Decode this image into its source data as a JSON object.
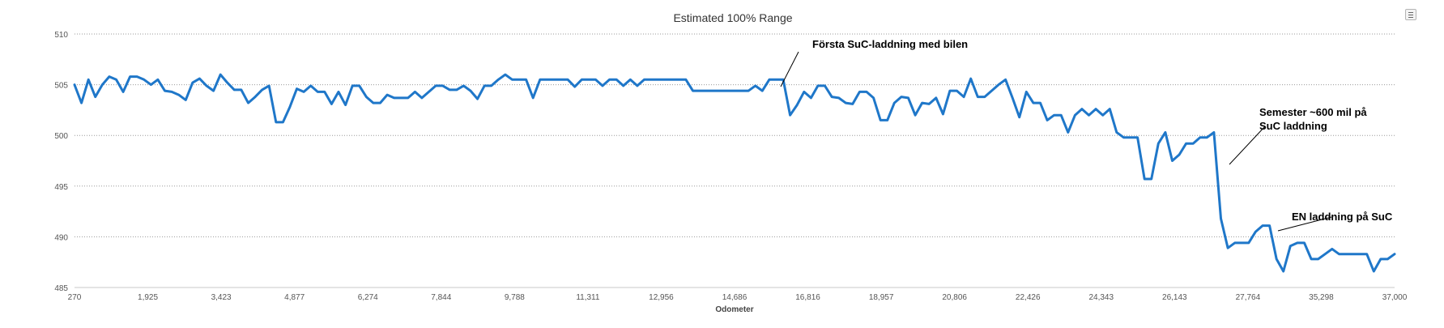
{
  "chart_data": {
    "type": "line",
    "title": "Estimated 100% Range",
    "xlabel": "Odometer",
    "ylabel": "",
    "ylim": [
      485,
      510
    ],
    "yticks": [
      510,
      505,
      500,
      495,
      490,
      485
    ],
    "grid": true,
    "grid_style": "dotted",
    "x_tick_labels": [
      "270",
      "1,925",
      "3,423",
      "4,877",
      "6,274",
      "7,844",
      "9,788",
      "11,311",
      "12,956",
      "14,686",
      "16,816",
      "18,957",
      "20,806",
      "22,426",
      "24,343",
      "26,143",
      "27,764",
      "35,298",
      "37,000"
    ],
    "series": [
      {
        "color": "#1f77c9",
        "values": [
          505,
          503.2,
          505.5,
          503.8,
          505,
          505.8,
          505.5,
          504.3,
          505.8,
          505.8,
          505.5,
          505,
          505.5,
          504.4,
          504.3,
          504,
          503.5,
          505.2,
          505.6,
          504.9,
          504.4,
          506,
          505.2,
          504.5,
          504.5,
          503.2,
          503.8,
          504.5,
          504.9,
          501.3,
          501.3,
          502.8,
          504.6,
          504.3,
          504.9,
          504.3,
          504.3,
          503.1,
          504.3,
          503,
          504.9,
          504.9,
          503.8,
          503.2,
          503.2,
          504,
          503.7,
          503.7,
          503.7,
          504.3,
          503.7,
          504.3,
          504.9,
          504.9,
          504.5,
          504.5,
          504.9,
          504.4,
          503.6,
          504.9,
          504.9,
          505.5,
          506,
          505.5,
          505.5,
          505.5,
          503.7,
          505.5,
          505.5,
          505.5,
          505.5,
          505.5,
          504.8,
          505.5,
          505.5,
          505.5,
          504.9,
          505.5,
          505.5,
          504.9,
          505.5,
          504.9,
          505.5,
          505.5,
          505.5,
          505.5,
          505.5,
          505.5,
          505.5,
          504.4,
          504.4,
          504.4,
          504.4,
          504.4,
          504.4,
          504.4,
          504.4,
          504.4,
          504.9,
          504.4,
          505.5,
          505.5,
          505.5,
          502,
          503,
          504.3,
          503.7,
          504.9,
          504.9,
          503.8,
          503.7,
          503.2,
          503.1,
          504.3,
          504.3,
          503.7,
          501.5,
          501.5,
          503.2,
          503.8,
          503.7,
          502,
          503.2,
          503.1,
          503.7,
          502.1,
          504.4,
          504.4,
          503.8,
          505.6,
          503.8,
          503.8,
          504.4,
          505,
          505.5,
          503.7,
          501.8,
          504.3,
          503.2,
          503.2,
          501.5,
          502,
          502,
          500.3,
          502,
          502.6,
          502,
          502.6,
          502,
          502.6,
          500.3,
          499.8,
          499.8,
          499.8,
          495.7,
          495.7,
          499.2,
          500.3,
          497.5,
          498.1,
          499.2,
          499.2,
          499.8,
          499.8,
          500.3,
          491.8,
          488.9,
          489.4,
          489.4,
          489.4,
          490.5,
          491.1,
          491.1,
          487.8,
          486.6,
          489.1,
          489.4,
          489.4,
          487.8,
          487.8,
          488.3,
          488.8,
          488.3,
          488.3,
          488.3,
          488.3,
          488.3,
          486.6,
          487.8,
          487.8,
          488.3
        ]
      }
    ],
    "annotations": [
      {
        "lines": [
          "Första SuC-laddning med bilen"
        ]
      },
      {
        "lines": [
          "Semester  ~600 mil på",
          "SuC laddning"
        ]
      },
      {
        "lines": [
          "EN laddning på SuC"
        ]
      }
    ]
  }
}
